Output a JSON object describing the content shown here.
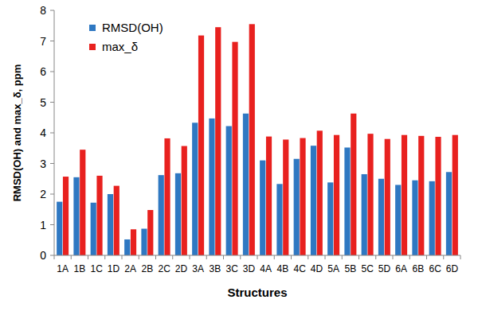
{
  "chart_data": {
    "type": "bar",
    "x_label": "Structures",
    "y_label": "RMSD(OH) and max_δ, ppm",
    "categories": [
      "1A",
      "1B",
      "1C",
      "1D",
      "2A",
      "2B",
      "2C",
      "2D",
      "3A",
      "3B",
      "3C",
      "3D",
      "4A",
      "4B",
      "4C",
      "4D",
      "5A",
      "5B",
      "5C",
      "5D",
      "6A",
      "6B",
      "6C",
      "6D"
    ],
    "series": [
      {
        "name": "RMSD(OH)",
        "color": "#2f78c2",
        "values": [
          1.75,
          2.55,
          1.72,
          2.0,
          0.52,
          0.87,
          2.62,
          2.68,
          4.33,
          4.47,
          4.22,
          4.63,
          3.1,
          2.33,
          3.15,
          3.58,
          2.38,
          3.52,
          2.65,
          2.5,
          2.3,
          2.45,
          2.42,
          2.72
        ]
      },
      {
        "name": "max_δ",
        "color": "#e8211f",
        "values": [
          2.57,
          3.45,
          2.6,
          2.27,
          0.85,
          1.48,
          3.82,
          3.57,
          7.18,
          7.45,
          6.97,
          7.55,
          3.88,
          3.78,
          3.83,
          4.07,
          3.93,
          4.63,
          3.97,
          3.8,
          3.93,
          3.9,
          3.87,
          3.93
        ]
      }
    ],
    "ylim": [
      0,
      8
    ],
    "yticks": [
      0,
      1,
      2,
      3,
      4,
      5,
      6,
      7,
      8
    ],
    "grid": false,
    "legend": "top-left"
  }
}
